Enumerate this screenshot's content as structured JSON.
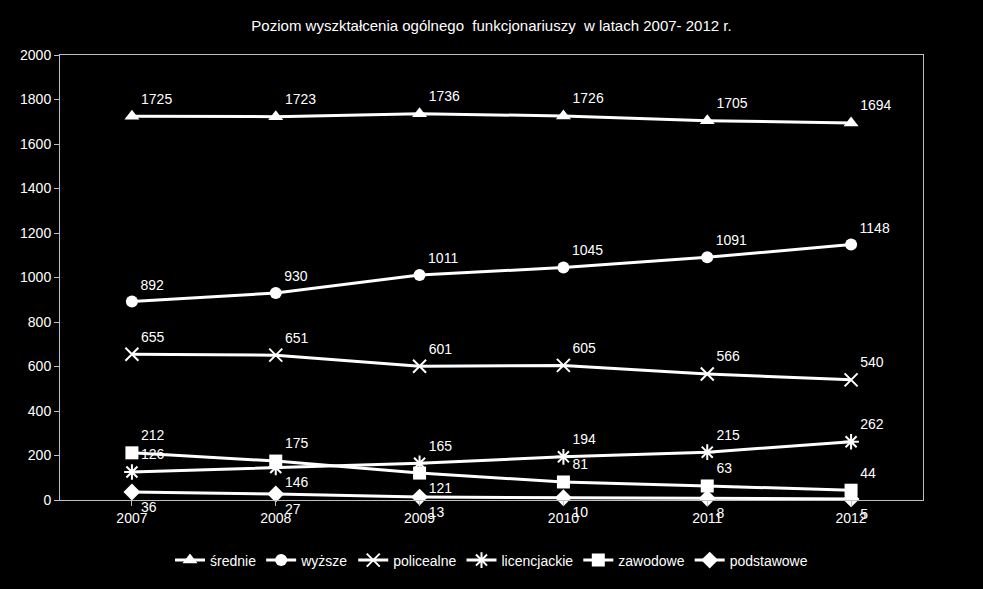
{
  "chart_data": {
    "type": "line",
    "title": "Poziom wyszktałcenia ogólnego  funkcjonariuszy  w latach 2007- 2012 r.",
    "categories": [
      "2007",
      "2008",
      "2009",
      "2010",
      "2011",
      "2012"
    ],
    "series": [
      {
        "name": "średnie",
        "color": "#ffffff",
        "marker": "triangle-up",
        "values": [
          1725,
          1723,
          1736,
          1726,
          1705,
          1694
        ]
      },
      {
        "name": "wyższe",
        "color": "#ffffff",
        "marker": "circle",
        "values": [
          892,
          930,
          1011,
          1045,
          1091,
          1148
        ]
      },
      {
        "name": "policealne",
        "color": "#ffffff",
        "marker": "x",
        "values": [
          655,
          651,
          601,
          605,
          566,
          540
        ]
      },
      {
        "name": "licencjackie",
        "color": "#ffffff",
        "marker": "asterisk",
        "values": [
          126,
          146,
          165,
          194,
          215,
          262
        ]
      },
      {
        "name": "zawodowe",
        "color": "#ffffff",
        "marker": "square",
        "values": [
          212,
          175,
          121,
          81,
          63,
          44
        ]
      },
      {
        "name": "podstawowe",
        "color": "#ffffff",
        "marker": "diamond",
        "values": [
          36,
          27,
          13,
          10,
          8,
          5
        ]
      }
    ],
    "ylim": [
      0,
      2000
    ],
    "yticks": [
      0,
      200,
      400,
      600,
      800,
      1000,
      1200,
      1400,
      1600,
      1800,
      2000
    ],
    "grid": false,
    "legend": "bottom",
    "data_labels": true
  }
}
